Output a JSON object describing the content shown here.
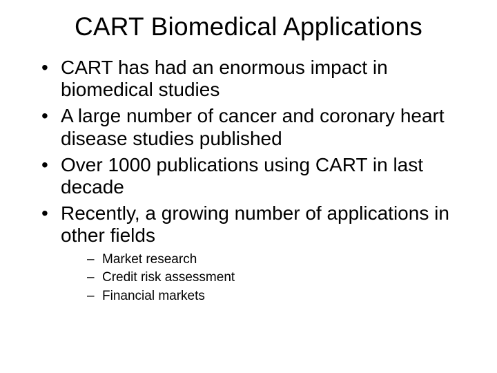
{
  "title": "CART Biomedical Applications",
  "bullets": [
    "CART has had an enormous impact in biomedical studies",
    "A large number of cancer and coronary heart disease studies published",
    "Over 1000 publications  using CART in last decade",
    "Recently, a growing number of applications in other fields"
  ],
  "sub_bullets": [
    "Market research",
    "Credit risk assessment",
    "Financial markets"
  ]
}
